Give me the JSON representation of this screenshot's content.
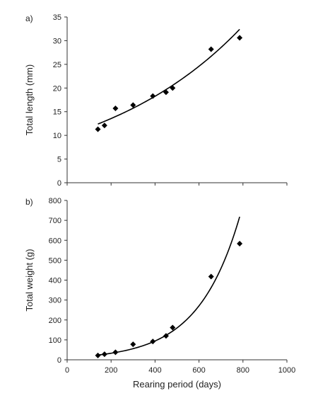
{
  "chart_data": [
    {
      "type": "scatter",
      "panel_label": "a)",
      "xlabel": "",
      "ylabel": "Total length (mm)",
      "xlim": [
        0,
        1000
      ],
      "ylim": [
        0,
        35
      ],
      "xticks": [
        0,
        200,
        400,
        600,
        800,
        1000
      ],
      "yticks": [
        0,
        5,
        10,
        15,
        20,
        25,
        30,
        35
      ],
      "show_xtick_labels": false,
      "grid": false,
      "series": [
        {
          "marker": "diamond",
          "x": [
            140,
            170,
            220,
            300,
            390,
            450,
            480,
            655,
            785
          ],
          "y": [
            11.3,
            12.1,
            15.7,
            16.4,
            18.3,
            19.1,
            20.0,
            28.2,
            30.6
          ]
        }
      ],
      "trendline": {
        "type": "exponential",
        "x_range": [
          140,
          785
        ],
        "y_range": [
          12.4,
          32.4
        ]
      }
    },
    {
      "type": "scatter",
      "panel_label": "b)",
      "xlabel": "Rearing period (days)",
      "ylabel": "Total weight (g)",
      "xlim": [
        0,
        1000
      ],
      "ylim": [
        0,
        800
      ],
      "xticks": [
        0,
        200,
        400,
        600,
        800,
        1000
      ],
      "yticks": [
        0,
        100,
        200,
        300,
        400,
        500,
        600,
        700,
        800
      ],
      "show_xtick_labels": true,
      "grid": false,
      "series": [
        {
          "marker": "diamond",
          "x": [
            140,
            170,
            220,
            300,
            390,
            450,
            480,
            655,
            785
          ],
          "y": [
            22,
            28,
            38,
            78,
            92,
            120,
            162,
            418,
            583
          ]
        }
      ],
      "trendline": {
        "type": "exponential",
        "x_range": [
          140,
          785
        ],
        "y_range": [
          24,
          718
        ]
      }
    }
  ]
}
